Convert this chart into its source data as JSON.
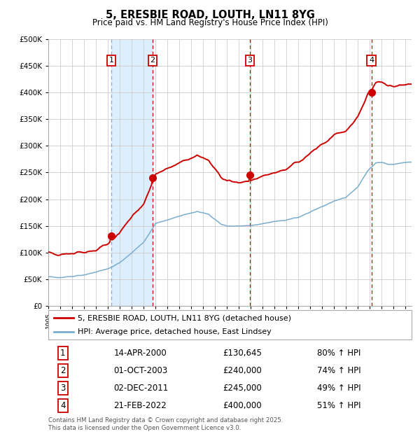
{
  "title": "5, ERESBIE ROAD, LOUTH, LN11 8YG",
  "subtitle": "Price paid vs. HM Land Registry's House Price Index (HPI)",
  "ytick_values": [
    0,
    50000,
    100000,
    150000,
    200000,
    250000,
    300000,
    350000,
    400000,
    450000,
    500000
  ],
  "ylim": [
    0,
    500000
  ],
  "xlim_start": 1995.0,
  "xlim_end": 2025.5,
  "sale_dates": [
    2000.28,
    2003.75,
    2011.92,
    2022.13
  ],
  "sale_prices": [
    130645,
    240000,
    245000,
    400000
  ],
  "sale_labels": [
    "1",
    "2",
    "3",
    "4"
  ],
  "red_line_color": "#cc0000",
  "blue_line_color": "#7aadcc",
  "dot_color": "#cc0000",
  "plot_bg": "#ffffff",
  "grid_color": "#cccccc",
  "shaded_color": "#ddeeff",
  "legend_entries": [
    "5, ERESBIE ROAD, LOUTH, LN11 8YG (detached house)",
    "HPI: Average price, detached house, East Lindsey"
  ],
  "table_rows": [
    [
      "1",
      "14-APR-2000",
      "£130,645",
      "80% ↑ HPI"
    ],
    [
      "2",
      "01-OCT-2003",
      "£240,000",
      "74% ↑ HPI"
    ],
    [
      "3",
      "02-DEC-2011",
      "£245,000",
      "49% ↑ HPI"
    ],
    [
      "4",
      "21-FEB-2022",
      "£400,000",
      "51% ↑ HPI"
    ]
  ],
  "footer": "Contains HM Land Registry data © Crown copyright and database right 2025.\nThis data is licensed under the Open Government Licence v3.0.",
  "shaded_region": [
    2000.28,
    2003.75
  ]
}
